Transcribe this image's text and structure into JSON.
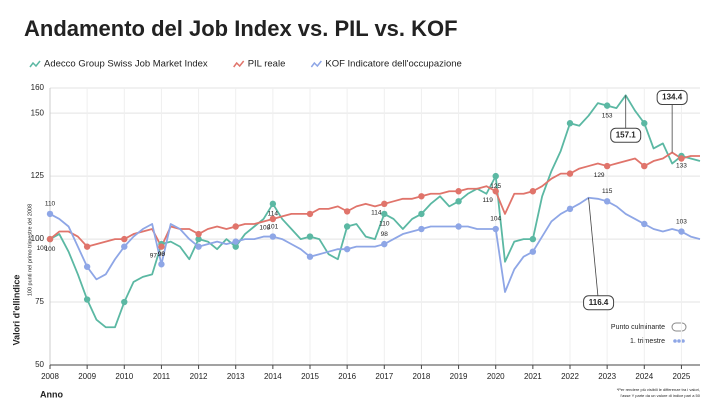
{
  "chart_data": {
    "type": "line",
    "title": "Andamento del Job Index vs. PIL vs. KOF",
    "y_label": "Valori d'ellindice",
    "y_sublabel": "100 punti nel primo trimestre del 2008",
    "x_label": "Anno",
    "footnote": [
      "*Per rendere più visibili le differenze tra i valori,",
      "l'asse Y parte da un valore di indice pari a 50"
    ],
    "legend_notes": [
      "Punto culminante",
      "1. trimestre"
    ],
    "xlim": [
      2008,
      2025.5
    ],
    "xticks": [
      2008,
      2009,
      2010,
      2011,
      2012,
      2013,
      2014,
      2015,
      2016,
      2017,
      2018,
      2019,
      2020,
      2021,
      2022,
      2023,
      2024,
      2025
    ],
    "ylim": [
      50,
      160
    ],
    "yticks": [
      50,
      75,
      100,
      125,
      150,
      160
    ],
    "grid": true,
    "x": [
      2008,
      2008.25,
      2008.5,
      2008.75,
      2009,
      2009.25,
      2009.5,
      2009.75,
      2010,
      2010.25,
      2010.5,
      2010.75,
      2011,
      2011.25,
      2011.5,
      2011.75,
      2012,
      2012.25,
      2012.5,
      2012.75,
      2013,
      2013.25,
      2013.5,
      2013.75,
      2014,
      2014.25,
      2014.5,
      2014.75,
      2015,
      2015.25,
      2015.5,
      2015.75,
      2016,
      2016.25,
      2016.5,
      2016.75,
      2017,
      2017.25,
      2017.5,
      2017.75,
      2018,
      2018.25,
      2018.5,
      2018.75,
      2019,
      2019.25,
      2019.5,
      2019.75,
      2020,
      2020.25,
      2020.5,
      2020.75,
      2021,
      2021.25,
      2021.5,
      2021.75,
      2022,
      2022.25,
      2022.5,
      2022.75,
      2023,
      2023.25,
      2023.5,
      2023.75,
      2024,
      2024.25,
      2024.5,
      2024.75,
      2025,
      2025.25,
      2025.5
    ],
    "label_x": [
      2008,
      2011,
      2014,
      2017,
      2020,
      2023,
      2025
    ],
    "series": [
      {
        "name": "Adecco Group Swiss Job Market Index",
        "color": "#5bb8a3",
        "peak_x": 2023.5,
        "values": [
          100,
          102,
          95,
          86,
          76,
          68,
          65,
          65,
          75,
          83,
          85,
          86,
          98,
          99,
          97,
          92,
          100,
          99,
          96,
          100,
          97,
          102,
          105,
          108,
          114,
          108,
          104,
          100,
          101,
          100,
          94,
          92,
          105,
          106,
          101,
          100,
          110,
          108,
          104,
          108,
          110,
          114,
          117,
          113,
          115,
          118,
          120,
          118,
          125,
          91,
          99,
          100,
          100,
          117,
          127,
          135,
          146,
          145,
          149,
          154,
          153,
          152,
          157.1,
          151,
          146,
          136,
          138,
          130,
          133,
          132,
          131
        ]
      },
      {
        "name": "PIL reale",
        "color": "#e0746b",
        "peak_x": 2024.75,
        "values": [
          100,
          103,
          103,
          101,
          97,
          98,
          99,
          100,
          100,
          102,
          103,
          104,
          97,
          105,
          104,
          104,
          102,
          104,
          105,
          104,
          105,
          106,
          106,
          107,
          108,
          109,
          110,
          110,
          110,
          112,
          112,
          113,
          111,
          113,
          114,
          113,
          114,
          115,
          116,
          116,
          117,
          118,
          118,
          119,
          119,
          120,
          120,
          121,
          119,
          110,
          118,
          118,
          119,
          121,
          124,
          126,
          126,
          128,
          129,
          130,
          129,
          130,
          131,
          132,
          129,
          131,
          132,
          134.4,
          132,
          133,
          133
        ]
      },
      {
        "name": "KOF Indicatore dell'occupazione",
        "color": "#8ea6e6",
        "peak_x": 2022.5,
        "values": [
          110,
          108,
          105,
          97,
          89,
          84,
          86,
          92,
          97,
          101,
          104,
          106,
          90,
          106,
          104,
          100,
          97,
          98,
          99,
          98,
          99,
          100,
          100,
          101,
          101,
          100,
          98,
          96,
          93,
          94,
          95,
          96,
          96,
          97,
          97,
          97,
          98,
          100,
          102,
          103,
          104,
          105,
          105,
          105,
          105,
          105,
          104,
          104,
          104,
          79,
          88,
          93,
          95,
          101,
          107,
          110,
          112,
          114,
          116.4,
          116,
          115,
          113,
          110,
          108,
          106,
          104,
          103,
          104,
          103,
          101,
          100
        ]
      }
    ]
  }
}
